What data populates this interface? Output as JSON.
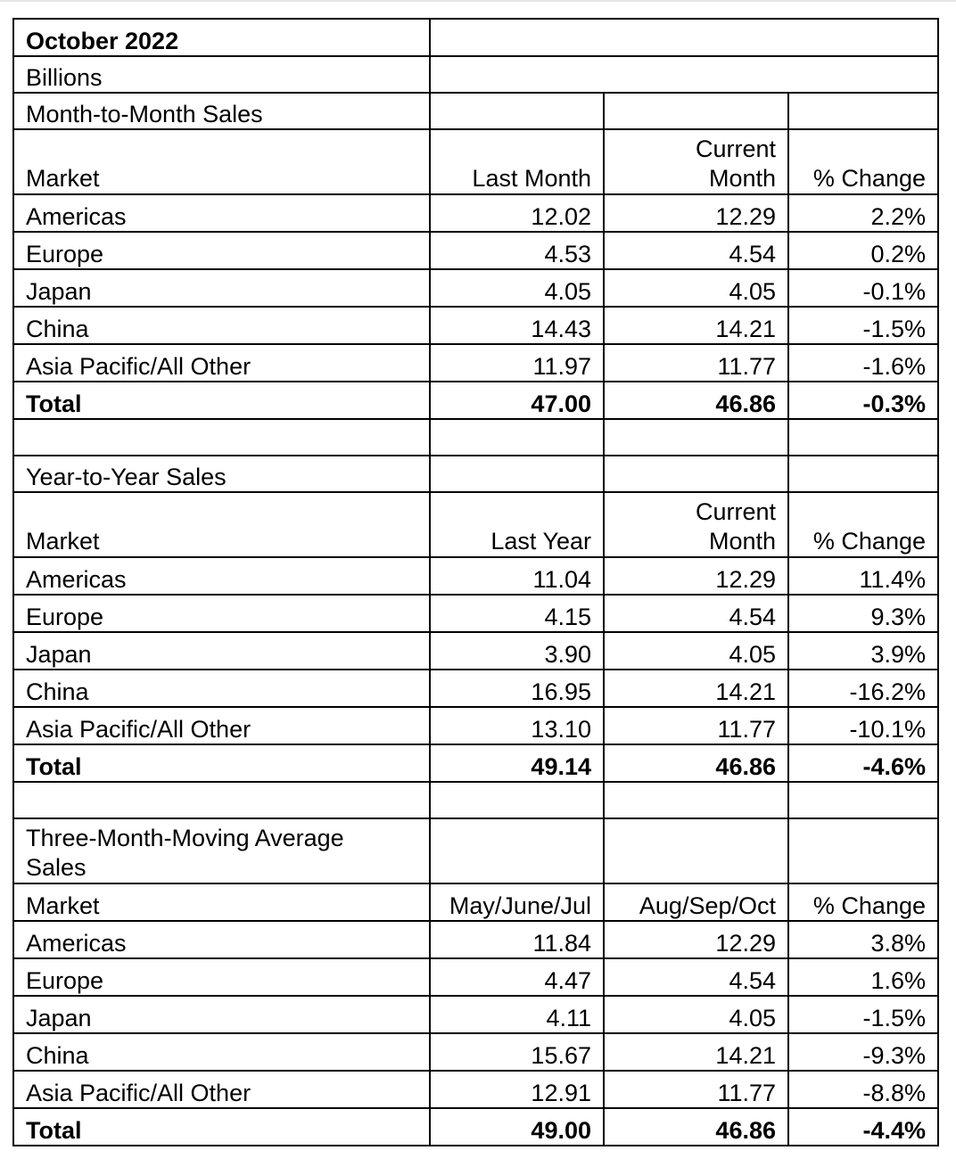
{
  "report": {
    "title": "October 2022",
    "units": "Billions"
  },
  "sections": [
    {
      "id": "month",
      "title": "Month-to-Month Sales",
      "header": {
        "market": "Market",
        "col1": "Last Month",
        "col2_line1": "Current",
        "col2_line2": "Month",
        "col3": "% Change"
      },
      "rows": [
        {
          "market": "Americas",
          "v1": "12.02",
          "v2": "12.29",
          "chg": "2.2%"
        },
        {
          "market": "Europe",
          "v1": "4.53",
          "v2": "4.54",
          "chg": "0.2%"
        },
        {
          "market": "Japan",
          "v1": "4.05",
          "v2": "4.05",
          "chg": "-0.1%"
        },
        {
          "market": "China",
          "v1": "14.43",
          "v2": "14.21",
          "chg": "-1.5%"
        },
        {
          "market": "Asia Pacific/All Other",
          "v1": "11.97",
          "v2": "11.77",
          "chg": "-1.6%"
        },
        {
          "market": "Total",
          "v1": "47.00",
          "v2": "46.86",
          "chg": "-0.3%"
        }
      ]
    },
    {
      "id": "year",
      "title": "Year-to-Year Sales",
      "header": {
        "market": "Market",
        "col1": "Last Year",
        "col2_line1": "Current",
        "col2_line2": "Month",
        "col3": "% Change"
      },
      "rows": [
        {
          "market": "Americas",
          "v1": "11.04",
          "v2": "12.29",
          "chg": "11.4%"
        },
        {
          "market": "Europe",
          "v1": "4.15",
          "v2": "4.54",
          "chg": "9.3%"
        },
        {
          "market": "Japan",
          "v1": "3.90",
          "v2": "4.05",
          "chg": "3.9%"
        },
        {
          "market": "China",
          "v1": "16.95",
          "v2": "14.21",
          "chg": "-16.2%"
        },
        {
          "market": "Asia Pacific/All Other",
          "v1": "13.10",
          "v2": "11.77",
          "chg": "-10.1%"
        },
        {
          "market": "Total",
          "v1": "49.14",
          "v2": "46.86",
          "chg": "-4.6%"
        }
      ]
    },
    {
      "id": "avg",
      "title_line1": "Three-Month-Moving Average",
      "title_line2": "Sales",
      "header": {
        "market": "Market",
        "col1": "May/June/Jul",
        "col2": "Aug/Sep/Oct",
        "col3": "% Change"
      },
      "rows": [
        {
          "market": "Americas",
          "v1": "11.84",
          "v2": "12.29",
          "chg": "3.8%"
        },
        {
          "market": "Europe",
          "v1": "4.47",
          "v2": "4.54",
          "chg": "1.6%"
        },
        {
          "market": "Japan",
          "v1": "4.11",
          "v2": "4.05",
          "chg": "-1.5%"
        },
        {
          "market": "China",
          "v1": "15.67",
          "v2": "14.21",
          "chg": "-9.3%"
        },
        {
          "market": "Asia Pacific/All Other",
          "v1": "12.91",
          "v2": "11.77",
          "chg": "-8.8%"
        },
        {
          "market": "Total",
          "v1": "49.00",
          "v2": "46.86",
          "chg": "-4.4%"
        }
      ]
    }
  ]
}
